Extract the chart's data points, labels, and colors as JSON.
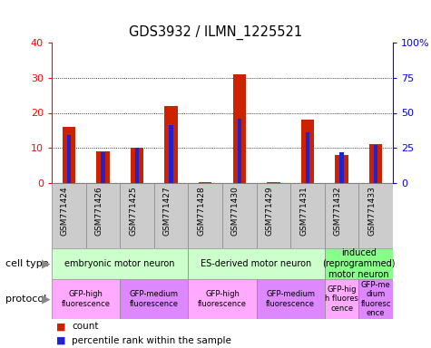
{
  "title": "GDS3932 / ILMN_1225521",
  "samples": [
    "GSM771424",
    "GSM771426",
    "GSM771425",
    "GSM771427",
    "GSM771428",
    "GSM771430",
    "GSM771429",
    "GSM771431",
    "GSM771432",
    "GSM771433"
  ],
  "counts": [
    16,
    9,
    10,
    22,
    0.3,
    31,
    0.3,
    18,
    8,
    11
  ],
  "percentile_ranks": [
    34,
    22,
    25,
    41,
    0,
    46,
    0,
    36,
    22,
    27
  ],
  "ylim_left": [
    0,
    40
  ],
  "ylim_right": [
    0,
    100
  ],
  "yticks_left": [
    0,
    10,
    20,
    30,
    40
  ],
  "yticks_right": [
    0,
    25,
    50,
    75,
    100
  ],
  "ytick_labels_right": [
    "0",
    "25",
    "50",
    "75",
    "100%"
  ],
  "bar_color": "#cc2200",
  "percentile_color": "#2222cc",
  "cell_type_groups": [
    {
      "label": "embryonic motor neuron",
      "start": 0,
      "end": 4,
      "color": "#ccffcc"
    },
    {
      "label": "ES-derived motor neuron",
      "start": 4,
      "end": 8,
      "color": "#ccffcc"
    },
    {
      "label": "induced\n(reprogrammed)\nmotor neuron",
      "start": 8,
      "end": 10,
      "color": "#88ff88"
    }
  ],
  "protocol_groups": [
    {
      "label": "GFP-high\nfluorescence",
      "start": 0,
      "end": 2,
      "color": "#ffaaff"
    },
    {
      "label": "GFP-medium\nfluorescence",
      "start": 2,
      "end": 4,
      "color": "#dd88ff"
    },
    {
      "label": "GFP-high\nfluorescence",
      "start": 4,
      "end": 6,
      "color": "#ffaaff"
    },
    {
      "label": "GFP-medium\nfluorescence",
      "start": 6,
      "end": 8,
      "color": "#dd88ff"
    },
    {
      "label": "GFP-hig\nh fluores\ncence",
      "start": 8,
      "end": 9,
      "color": "#ffaaff"
    },
    {
      "label": "GFP-me\ndium\nfluoresc\nence",
      "start": 9,
      "end": 10,
      "color": "#dd88ff"
    }
  ],
  "cell_type_label": "cell type",
  "protocol_label": "protocol",
  "legend_count_color": "#cc2200",
  "legend_percentile_color": "#2222cc",
  "legend_count_text": "count",
  "legend_percentile_text": "percentile rank within the sample"
}
